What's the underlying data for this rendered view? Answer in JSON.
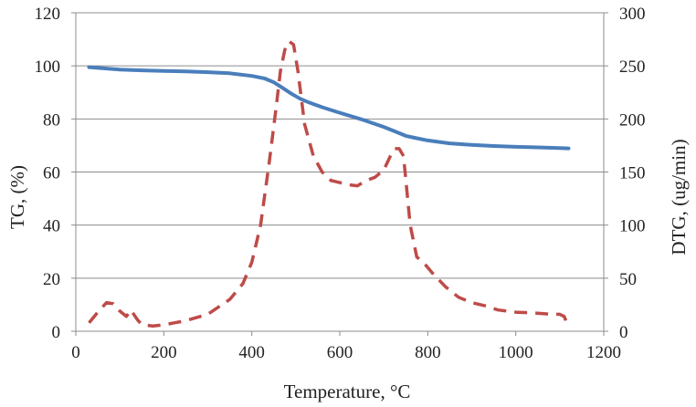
{
  "chart_data": {
    "type": "line",
    "xlabel": "Temperature, °C",
    "ylabel_left": "TG, (%)",
    "ylabel_right": "DTG, (ug/min)",
    "xlim": [
      0,
      1200
    ],
    "ylim_left": [
      0,
      120
    ],
    "ylim_right": [
      0,
      300
    ],
    "x_ticks": [
      "0",
      "200",
      "400",
      "600",
      "800",
      "1000",
      "1200"
    ],
    "y_left_ticks": [
      "0",
      "20",
      "40",
      "60",
      "80",
      "100",
      "120"
    ],
    "y_right_ticks": [
      "0",
      "50",
      "100",
      "150",
      "200",
      "250",
      "300"
    ],
    "grid": "horizontal",
    "colors": {
      "tg": "#4a7ebb",
      "dtg": "#be4b48",
      "grid": "#8c8c8c"
    },
    "series": [
      {
        "name": "TG",
        "axis": "left",
        "style": "solid",
        "x": [
          30,
          100,
          150,
          200,
          250,
          300,
          350,
          400,
          430,
          450,
          470,
          490,
          510,
          530,
          560,
          600,
          650,
          700,
          730,
          750,
          770,
          800,
          850,
          900,
          950,
          1000,
          1050,
          1100,
          1120
        ],
        "y": [
          99.5,
          98.6,
          98.3,
          98.1,
          97.9,
          97.6,
          97.2,
          96.2,
          95.2,
          93.8,
          91.7,
          89.5,
          87.6,
          86.2,
          84.4,
          82.3,
          79.8,
          77.0,
          75.0,
          73.6,
          72.9,
          71.9,
          70.8,
          70.2,
          69.8,
          69.5,
          69.3,
          69.0,
          68.9
        ]
      },
      {
        "name": "DTG",
        "axis": "right",
        "style": "dashed",
        "x": [
          30,
          50,
          70,
          85,
          100,
          115,
          125,
          140,
          150,
          175,
          200,
          225,
          250,
          300,
          350,
          380,
          400,
          420,
          440,
          455,
          465,
          475,
          485,
          495,
          505,
          520,
          540,
          560,
          580,
          600,
          620,
          640,
          660,
          680,
          700,
          715,
          725,
          735,
          745,
          760,
          775,
          790,
          810,
          840,
          870,
          900,
          930,
          960,
          1000,
          1050,
          1080,
          1100,
          1110,
          1120
        ],
        "y": [
          8,
          18,
          27,
          26,
          19,
          14,
          20,
          11,
          6,
          5,
          6,
          8,
          10,
          16,
          30,
          45,
          65,
          100,
          160,
          210,
          245,
          265,
          273,
          270,
          245,
          195,
          165,
          150,
          142,
          140,
          138,
          137,
          142,
          145,
          152,
          165,
          172,
          172,
          165,
          100,
          70,
          65,
          55,
          42,
          32,
          27,
          24,
          20,
          18,
          17,
          16,
          16,
          14,
          4
        ]
      }
    ]
  }
}
